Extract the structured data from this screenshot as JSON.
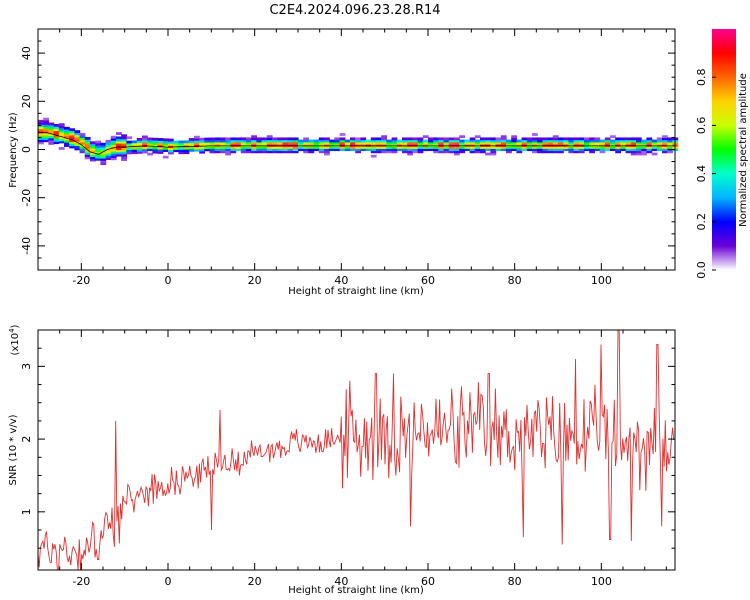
{
  "title": "C2E4.2024.096.23.28.R14",
  "chart_data": [
    {
      "type": "heatmap",
      "xlabel": "Height of straight line (km)",
      "ylabel": "Frequency (Hz)",
      "xlim": [
        -30,
        117
      ],
      "ylim": [
        -50,
        50
      ],
      "xticks": [
        -20,
        0,
        20,
        40,
        60,
        80,
        100
      ],
      "yticks": [
        -40,
        -20,
        0,
        20,
        40
      ],
      "colorbar": {
        "label": "Normalized spectral amplitude",
        "range": [
          0,
          1
        ],
        "ticks": [
          0.0,
          0.2,
          0.4,
          0.6,
          0.8
        ],
        "colors": [
          "#ffffff",
          "#6a00d8",
          "#0000ff",
          "#00b4ff",
          "#00ffcc",
          "#00ff00",
          "#c8ff00",
          "#ffd200",
          "#ff6400",
          "#ff0000",
          "#ff0090"
        ]
      },
      "ridge": {
        "x": [
          -30,
          -28,
          -26,
          -24,
          -22,
          -20,
          -18,
          -16,
          -14,
          -12,
          -10,
          -5,
          0,
          10,
          20,
          40,
          60,
          80,
          100,
          117
        ],
        "y": [
          7,
          7,
          6,
          5,
          4,
          2,
          -1,
          -2,
          0,
          1,
          1,
          1.5,
          1,
          1.5,
          1.5,
          1.5,
          1.5,
          1.5,
          1.5,
          1.5
        ]
      }
    },
    {
      "type": "line",
      "xlabel": "Height of straight line (km)",
      "ylabel": "SNR (10 * v/v)",
      "yscale_label": "(x10",
      "yscale_exp": "4",
      "yscale_close": ")",
      "xlim": [
        -30,
        117
      ],
      "ylim": [
        0.2,
        3.5
      ],
      "xticks": [
        -20,
        0,
        20,
        40,
        60,
        80,
        100
      ],
      "yticks": [
        1,
        2,
        3
      ],
      "color": "#e03030",
      "trend": {
        "x": [
          -30,
          -20,
          -14,
          -10,
          -5,
          0,
          10,
          20,
          30,
          40,
          50,
          60,
          70,
          80,
          90,
          100,
          117
        ],
        "y": [
          0.5,
          0.45,
          0.75,
          1.1,
          1.3,
          1.4,
          1.6,
          1.8,
          1.95,
          2.0,
          2.05,
          2.1,
          2.1,
          2.05,
          2.0,
          2.0,
          1.9
        ]
      },
      "peaks": [
        {
          "x": -12,
          "y": 2.25
        },
        {
          "x": 12,
          "y": 2.4
        },
        {
          "x": 42,
          "y": 2.8
        },
        {
          "x": 48,
          "y": 2.9
        },
        {
          "x": 52,
          "y": 2.9
        },
        {
          "x": 74,
          "y": 2.9
        },
        {
          "x": 94,
          "y": 3.1
        },
        {
          "x": 100,
          "y": 3.3
        },
        {
          "x": 104,
          "y": 3.5
        },
        {
          "x": 113,
          "y": 3.3
        }
      ],
      "troughs": [
        {
          "x": 10,
          "y": 0.75
        },
        {
          "x": 56,
          "y": 0.8
        },
        {
          "x": 82,
          "y": 0.65
        },
        {
          "x": 91,
          "y": 0.55
        },
        {
          "x": 102,
          "y": 0.62
        },
        {
          "x": 107,
          "y": 0.6
        },
        {
          "x": 114,
          "y": 0.8
        }
      ]
    }
  ]
}
